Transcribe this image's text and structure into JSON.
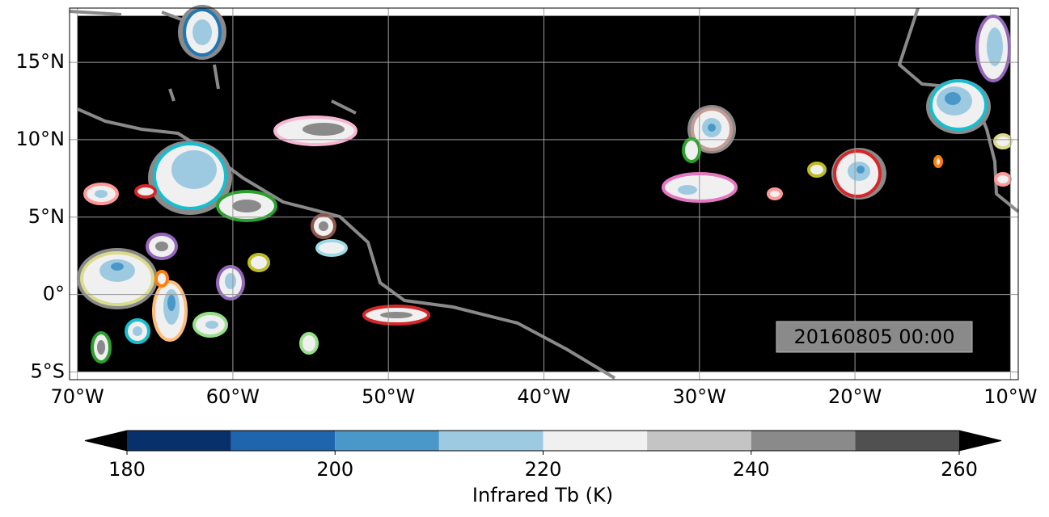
{
  "map": {
    "lonlim": [
      -70.5,
      -9.5
    ],
    "latlim": [
      -5.5,
      18.5
    ],
    "data_extent": {
      "lon": [
        -70,
        -10
      ],
      "lat": [
        -5,
        18
      ]
    },
    "xticks": [
      {
        "value": -70,
        "label": "70°W"
      },
      {
        "value": -60,
        "label": "60°W"
      },
      {
        "value": -50,
        "label": "50°W"
      },
      {
        "value": -40,
        "label": "40°W"
      },
      {
        "value": -30,
        "label": "30°W"
      },
      {
        "value": -20,
        "label": "20°W"
      },
      {
        "value": -10,
        "label": "10°W"
      }
    ],
    "yticks": [
      {
        "value": -5,
        "label": "5°S"
      },
      {
        "value": 0,
        "label": "0°"
      },
      {
        "value": 5,
        "label": "5°N"
      },
      {
        "value": 10,
        "label": "10°N"
      },
      {
        "value": 15,
        "label": "15°N"
      }
    ],
    "grid": true,
    "timestamp": "20160805 00:00"
  },
  "colorbar": {
    "label": "Infrared Tb (K)",
    "levels": [
      180,
      190,
      200,
      210,
      220,
      230,
      240,
      250,
      260
    ],
    "colors": [
      "#08306b",
      "#1f65ae",
      "#4a98c9",
      "#9ecae1",
      "#f0f0f0",
      "#c4c4c4",
      "#8a8a8a",
      "#505050"
    ],
    "under_color": "#000000",
    "over_color": "#000000",
    "ticks": [
      180,
      200,
      220,
      240,
      260
    ]
  }
}
